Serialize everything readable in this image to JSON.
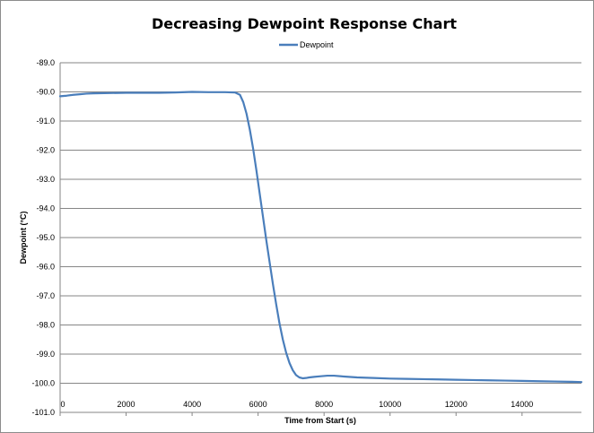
{
  "chart_data": {
    "type": "line",
    "title": "Decreasing Dewpoint Response Chart",
    "xlabel": "Time from Start (s)",
    "ylabel": "Dewpoint (°C)",
    "xlim": [
      0,
      15800
    ],
    "ylim": [
      -101.0,
      -89.0
    ],
    "x_ticks": [
      0,
      2000,
      4000,
      6000,
      8000,
      10000,
      12000,
      14000
    ],
    "x_tick_labels": [
      "0",
      "2000",
      "4000",
      "6000",
      "8000",
      "10000",
      "12000",
      "14000"
    ],
    "y_ticks": [
      -89.0,
      -90.0,
      -91.0,
      -92.0,
      -93.0,
      -94.0,
      -95.0,
      -96.0,
      -97.0,
      -98.0,
      -99.0,
      -100.0,
      -101.0
    ],
    "y_tick_labels": [
      "-89.0",
      "-90.0",
      "-91.0",
      "-92.0",
      "-93.0",
      "-94.0",
      "-95.0",
      "-96.0",
      "-97.0",
      "-98.0",
      "-99.0",
      "-100.0",
      "-101.0"
    ],
    "grid": true,
    "legend_position": "top-center",
    "colors": {
      "series": "#4a7ebb",
      "grid": "#868686",
      "axis": "#868686"
    },
    "series": [
      {
        "name": "Dewpoint",
        "x": [
          0,
          200,
          400,
          600,
          800,
          1000,
          1500,
          2000,
          2500,
          3000,
          3500,
          4000,
          4500,
          5000,
          5300,
          5450,
          5550,
          5650,
          5750,
          5850,
          5950,
          6050,
          6150,
          6250,
          6350,
          6450,
          6550,
          6650,
          6750,
          6850,
          6950,
          7050,
          7150,
          7250,
          7350,
          7450,
          7550,
          7700,
          7900,
          8100,
          8300,
          8600,
          9000,
          9500,
          10000,
          10500,
          11000,
          11500,
          12000,
          12500,
          13000,
          13500,
          14000,
          14500,
          15000,
          15500,
          15800
        ],
        "y": [
          -90.15,
          -90.13,
          -90.1,
          -90.08,
          -90.06,
          -90.05,
          -90.04,
          -90.03,
          -90.03,
          -90.03,
          -90.02,
          -90.0,
          -90.01,
          -90.01,
          -90.02,
          -90.1,
          -90.35,
          -90.75,
          -91.3,
          -91.95,
          -92.7,
          -93.5,
          -94.3,
          -95.1,
          -95.85,
          -96.6,
          -97.3,
          -97.95,
          -98.5,
          -98.95,
          -99.3,
          -99.55,
          -99.72,
          -99.8,
          -99.83,
          -99.82,
          -99.8,
          -99.78,
          -99.76,
          -99.74,
          -99.74,
          -99.77,
          -99.8,
          -99.82,
          -99.84,
          -99.85,
          -99.86,
          -99.87,
          -99.88,
          -99.89,
          -99.9,
          -99.91,
          -99.92,
          -99.93,
          -99.94,
          -99.95,
          -99.96
        ]
      }
    ]
  }
}
